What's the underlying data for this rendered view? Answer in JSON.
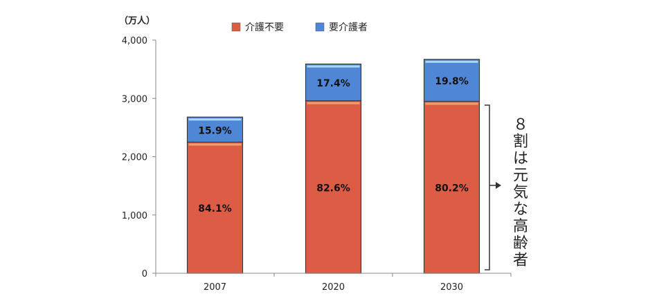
{
  "chart_data": {
    "type": "bar",
    "stacked": true,
    "y_unit": "（万人）",
    "categories": [
      "2007",
      "2020",
      "2030"
    ],
    "yticks": [
      "0",
      "1,000",
      "2,000",
      "3,000",
      "4,000"
    ],
    "ylim": [
      0,
      4000
    ],
    "series": [
      {
        "name": "介護不要",
        "color": "#dc5c46",
        "values": [
          2250,
          2960,
          2950
        ],
        "labels": [
          "84.1%",
          "82.6%",
          "80.2%"
        ]
      },
      {
        "name": "要介護者",
        "color": "#4f87d6",
        "values": [
          430,
          630,
          720
        ],
        "labels": [
          "15.9%",
          "17.4%",
          "19.8%"
        ]
      }
    ],
    "legend_position": "top",
    "annotation": "８割は元気な高齢者"
  }
}
